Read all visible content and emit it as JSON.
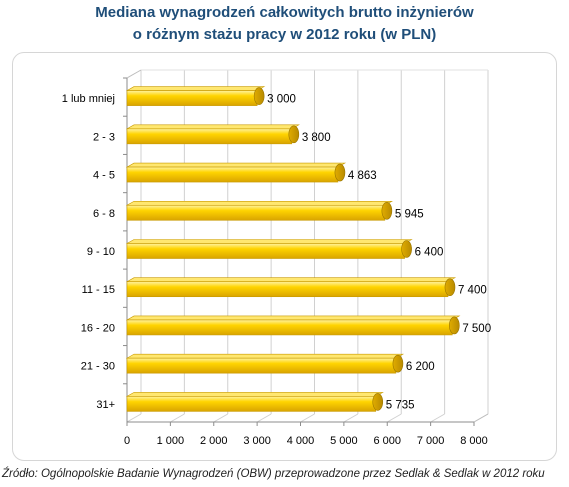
{
  "chart_data": {
    "type": "bar",
    "orientation": "horizontal",
    "title_line1": "Mediana wynagrodzeń całkowitych brutto inżynierów",
    "title_line2": "o różnym stażu pracy w 2012 roku (w PLN)",
    "categories": [
      "1 lub mniej",
      "2 - 3",
      "4 - 5",
      "6 - 8",
      "9 - 10",
      "11 - 15",
      "16 - 20",
      "21 - 30",
      "31+"
    ],
    "values": [
      3000,
      3800,
      4863,
      5945,
      6400,
      7400,
      7500,
      6200,
      5735
    ],
    "value_labels": [
      "3 000",
      "3 800",
      "4 863",
      "5 945",
      "6 400",
      "7 400",
      "7 500",
      "6 200",
      "5 735"
    ],
    "x_ticks": [
      0,
      1000,
      2000,
      3000,
      4000,
      5000,
      6000,
      7000,
      8000
    ],
    "x_tick_labels": [
      "0",
      "1 000",
      "2 000",
      "3 000",
      "4 000",
      "5 000",
      "6 000",
      "7 000",
      "8 000"
    ],
    "xlim": [
      0,
      8000
    ],
    "grid": true,
    "bar_color": "#f5c400",
    "source": "Źródło: Ogólnopolskie Badanie Wynagrodzeń (OBW) przeprowadzone przez Sedlak & Sedlak w 2012 roku"
  }
}
